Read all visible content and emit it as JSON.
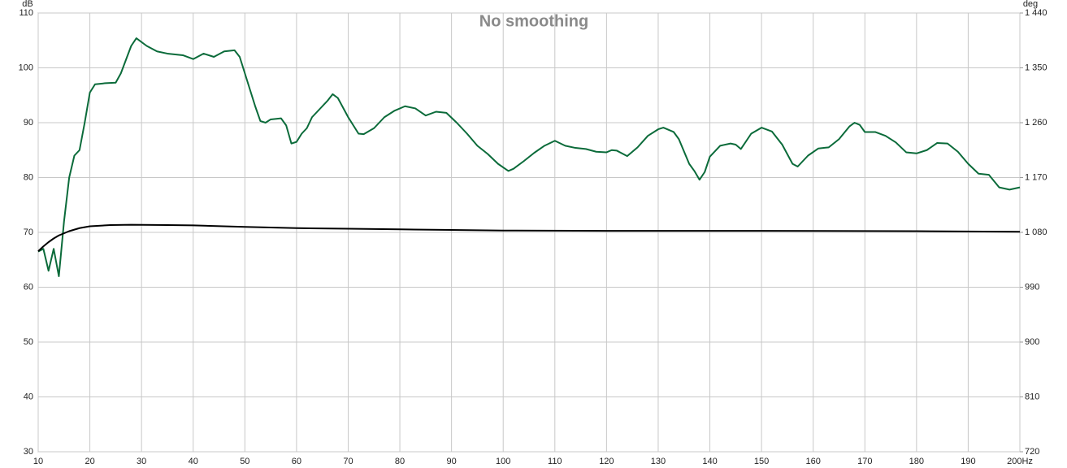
{
  "chart_data": {
    "type": "line",
    "title": "No smoothing",
    "y_unit": "dB",
    "y2_unit": "deg",
    "xlim": [
      10,
      200
    ],
    "xticks": [
      10,
      20,
      30,
      40,
      50,
      60,
      70,
      80,
      90,
      100,
      110,
      120,
      130,
      140,
      150,
      160,
      170,
      180,
      190,
      {
        "value": 200,
        "label": "200Hz"
      }
    ],
    "ylim": [
      30,
      110
    ],
    "yticks": [
      30,
      40,
      50,
      60,
      70,
      80,
      90,
      100,
      110
    ],
    "y2lim": [
      720,
      1440
    ],
    "y2ticks": [
      720,
      810,
      900,
      990,
      {
        "value": 1080,
        "label": "1 080"
      },
      {
        "value": 1170,
        "label": "1 170"
      },
      {
        "value": 1260,
        "label": "1 260"
      },
      {
        "value": 1350,
        "label": "1 350"
      },
      {
        "value": 1440,
        "label": "1 440"
      }
    ],
    "grid": true,
    "series": [
      {
        "color": "#0b6b3a",
        "x": [
          10,
          11,
          12,
          13,
          14,
          15,
          16,
          17,
          18,
          19,
          20,
          21,
          23,
          25,
          26,
          27,
          28,
          29,
          31,
          33,
          35,
          38,
          40,
          42,
          44,
          46,
          48,
          49,
          50,
          51,
          52,
          53,
          54,
          55,
          57,
          58,
          59,
          60,
          61,
          62,
          63,
          65,
          66,
          67,
          68,
          70,
          72,
          73,
          75,
          77,
          79,
          81,
          83,
          85,
          87,
          89,
          91,
          93,
          95,
          97,
          99,
          101,
          102,
          104,
          106,
          108,
          110,
          112,
          114,
          116,
          118,
          120,
          121,
          122,
          124,
          126,
          128,
          130,
          131,
          133,
          134,
          136,
          137,
          138,
          139,
          140,
          142,
          144,
          145,
          146,
          148,
          150,
          152,
          154,
          156,
          157,
          159,
          161,
          163,
          165,
          167,
          168,
          169,
          170,
          172,
          174,
          176,
          178,
          180,
          182,
          184,
          186,
          188,
          190,
          192,
          194,
          196,
          198,
          200
        ],
        "values": [
          66.5,
          67,
          63,
          67,
          62,
          72,
          80,
          84,
          85,
          90,
          95.5,
          97,
          97.2,
          97.3,
          99,
          101.5,
          104,
          105.4,
          104,
          103,
          102.6,
          102.3,
          101.6,
          102.6,
          102,
          103,
          103.2,
          102,
          99,
          96,
          93,
          90.3,
          90,
          90.6,
          90.8,
          89.5,
          86.2,
          86.5,
          88,
          89,
          91,
          93,
          94,
          95.2,
          94.5,
          91,
          88,
          87.9,
          89,
          91,
          92.2,
          93,
          92.6,
          91.3,
          92,
          91.8,
          90,
          88,
          85.8,
          84.3,
          82.5,
          81.2,
          81.6,
          83,
          84.5,
          85.8,
          86.7,
          85.8,
          85.4,
          85.2,
          84.7,
          84.6,
          85,
          84.9,
          83.9,
          85.5,
          87.6,
          88.8,
          89.1,
          88.3,
          87,
          82.5,
          81.2,
          79.6,
          81,
          83.8,
          85.8,
          86.2,
          86,
          85.2,
          88,
          89.1,
          88.4,
          86,
          82.5,
          82,
          84,
          85.3,
          85.5,
          87,
          89.3,
          90,
          89.6,
          88.3,
          88.3,
          87.6,
          86.4,
          84.6,
          84.4,
          85,
          86.3,
          86.2,
          84.7,
          82.5,
          80.7,
          80.5,
          78.2,
          77.8,
          78.2
        ]
      },
      {
        "color": "#000000",
        "axis": "y2",
        "x": [
          10,
          11,
          12,
          13,
          14,
          16,
          18,
          20,
          24,
          28,
          35,
          40,
          50,
          60,
          70,
          80,
          90,
          100,
          120,
          150,
          180,
          200
        ],
        "values": [
          1049,
          1057,
          1064,
          1070,
          1075,
          1082,
          1087,
          1090,
          1092,
          1092.5,
          1092,
          1091.5,
          1089,
          1087,
          1086,
          1085,
          1084,
          1083,
          1082.5,
          1082.5,
          1082,
          1081
        ]
      }
    ]
  }
}
